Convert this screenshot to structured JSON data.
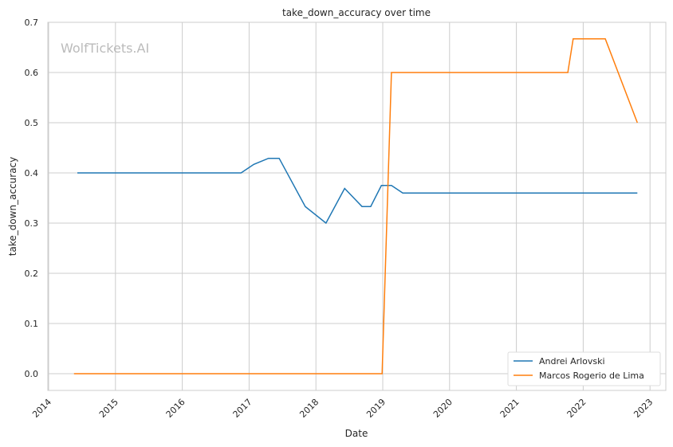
{
  "chart_data": {
    "type": "line",
    "title": "take_down_accuracy over time",
    "xlabel": "Date",
    "ylabel": "take_down_accuracy",
    "watermark": "WolfTickets.AI",
    "xlim": [
      2014.0,
      2023.25
    ],
    "ylim": [
      -0.035,
      0.7
    ],
    "xticks": [
      2014,
      2015,
      2016,
      2017,
      2018,
      2019,
      2020,
      2021,
      2022,
      2023
    ],
    "yticks": [
      0.0,
      0.1,
      0.2,
      0.3,
      0.4,
      0.5,
      0.6,
      0.7
    ],
    "ytick_labels": [
      "0.0",
      "0.1",
      "0.2",
      "0.3",
      "0.4",
      "0.5",
      "0.6",
      "0.7"
    ],
    "grid": true,
    "legend_position": "lower-right",
    "series": [
      {
        "name": "Andrei Arlovski",
        "color": "#1f77b4",
        "x": [
          2014.43,
          2016.88,
          2017.07,
          2017.29,
          2017.45,
          2017.84,
          2018.15,
          2018.43,
          2018.69,
          2018.82,
          2018.98,
          2019.13,
          2019.3,
          2022.81
        ],
        "y": [
          0.4,
          0.4,
          0.417,
          0.429,
          0.429,
          0.333,
          0.3,
          0.369,
          0.333,
          0.333,
          0.375,
          0.375,
          0.36,
          0.36
        ]
      },
      {
        "name": "Marcos Rogerio de Lima",
        "color": "#ff7f0e",
        "x": [
          2014.38,
          2018.99,
          2019.13,
          2021.77,
          2021.85,
          2022.33,
          2022.81
        ],
        "y": [
          0.0,
          0.0,
          0.6,
          0.6,
          0.667,
          0.667,
          0.5
        ]
      }
    ]
  }
}
